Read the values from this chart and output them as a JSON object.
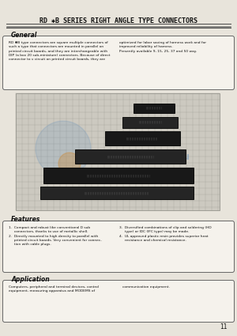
{
  "bg_color": "#e8e4db",
  "title": "RD ✱B SERIES RIGHT ANGLE TYPE CONNECTORS",
  "title_fontsize": 6.0,
  "page_number": "11",
  "general_title": "General",
  "general_text_left": "RD ✱B type connectors are square multiple connectors of\nsuch a type that connectors are mounted in parallel on\nprinted circuit boards, and they are interchangeable with\nDIP (a box 20 sub-miniature) connectors. Because of direct\nconnector to v circuit on printed circuit boards, they are",
  "general_text_right": "optimized for labor saving of harness work and for\nimproved reliability of harness.\nPresently available 9, 15, 25, 37 and 50 way.",
  "features_title": "Features",
  "features_text_col1": "1.  Compact and robust like conventional D sub\n     connectors, thanks to use of metallic shell.\n2.  Directly mounted to high density to parallel with\n     printed circuit boards. Very convenient for connec-\n     tion with cable plugs.",
  "features_text_col2": "3.  Diversified combinations of clip and soldering (HD\n     type) or IDC (IFC type) may be made.\n4.  UL approved plastic resin provides superior heat\n     resistance and chemical resistance.",
  "application_title": "Application",
  "application_text_left": "Computers, peripheral and terminal devices, control\nequipment, measuring apparatus and MODEMS of",
  "application_text_right": "communication equipment.",
  "line_color": "#444444",
  "box_bg": "#f5f2ec",
  "text_color": "#111111",
  "grid_bg": "#ccc9c0",
  "grid_line": "#999990",
  "conn_dark": "#111111",
  "conn_mid": "#2a2a2a",
  "watermark_blue": "#5588bb",
  "watermark_orange": "#cc8833"
}
